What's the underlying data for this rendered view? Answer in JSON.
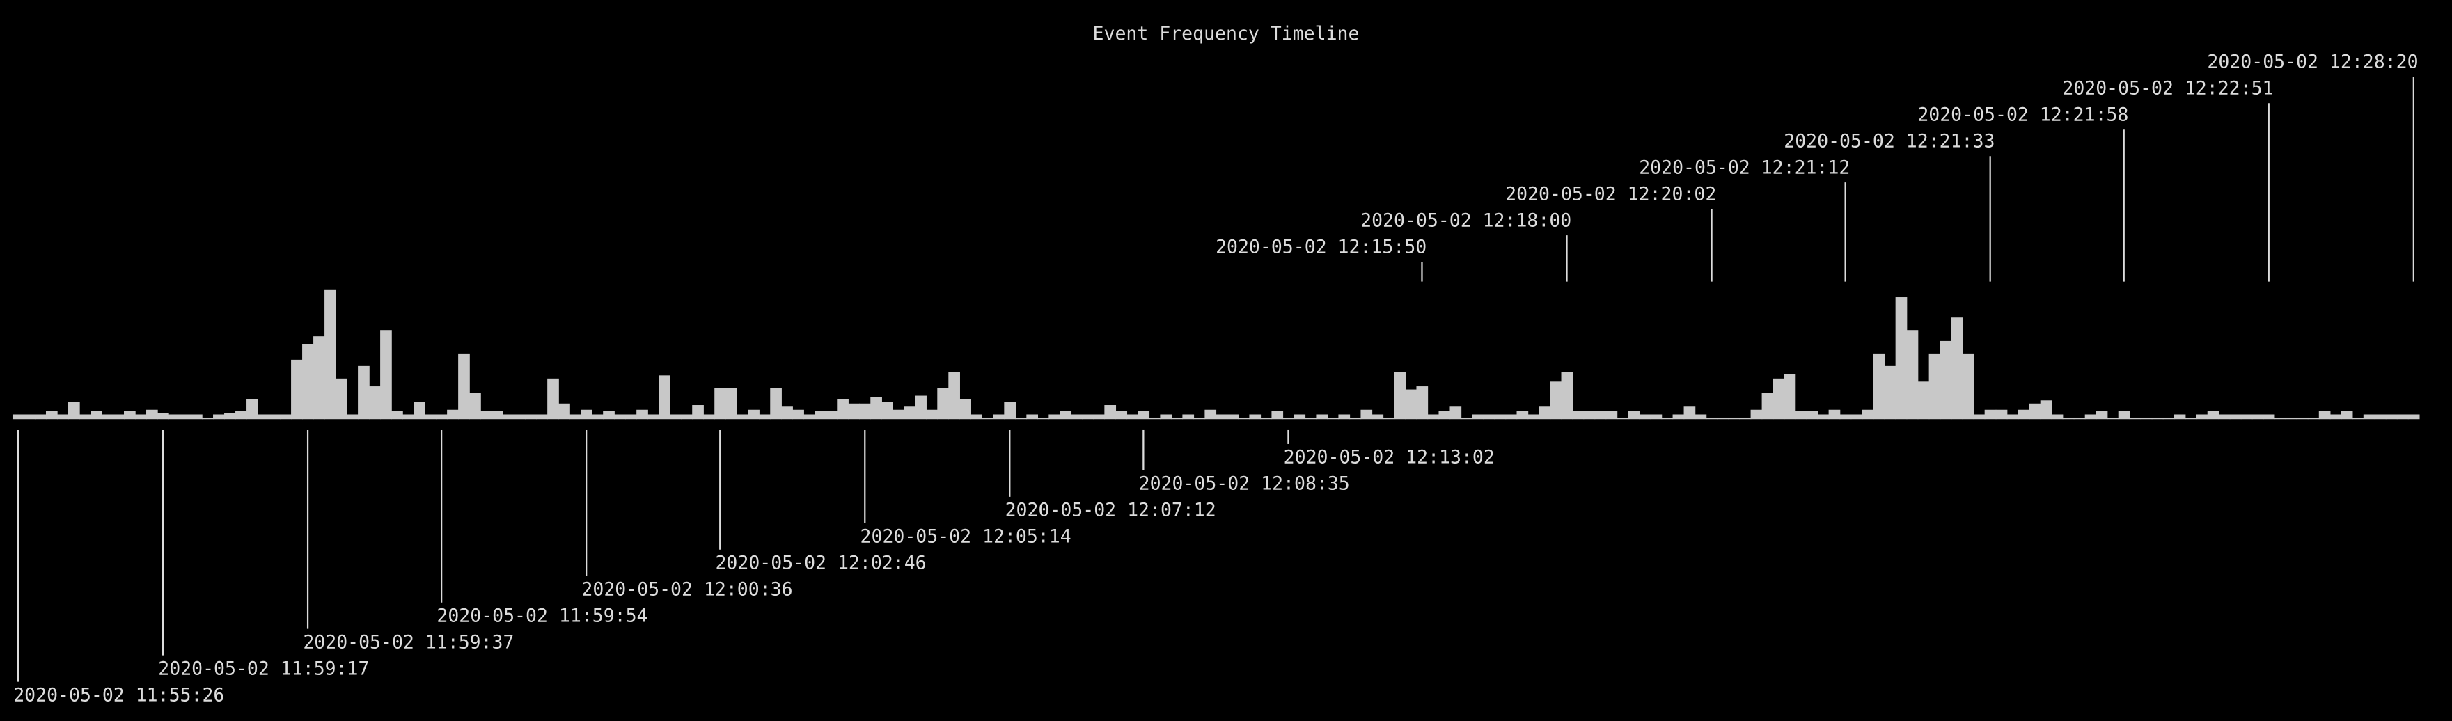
{
  "chart_data": {
    "type": "bar",
    "title": "Event Frequency Timeline",
    "color": "#c8c8c8",
    "values": [
      3,
      3,
      3,
      5,
      3,
      11,
      3,
      5,
      3,
      3,
      5,
      3,
      6,
      4,
      3,
      3,
      3,
      1,
      3,
      4,
      5,
      13,
      3,
      3,
      3,
      38,
      48,
      53,
      83,
      26,
      3,
      34,
      21,
      57,
      5,
      3,
      11,
      3,
      3,
      6,
      42,
      17,
      5,
      5,
      3,
      3,
      3,
      3,
      26,
      10,
      3,
      6,
      3,
      5,
      3,
      3,
      6,
      3,
      28,
      3,
      3,
      9,
      3,
      20,
      20,
      3,
      6,
      3,
      20,
      8,
      6,
      3,
      5,
      5,
      13,
      10,
      10,
      14,
      11,
      6,
      8,
      15,
      6,
      20,
      30,
      13,
      3,
      1,
      3,
      11,
      1,
      3,
      1,
      3,
      5,
      3,
      3,
      3,
      9,
      5,
      3,
      5,
      1,
      3,
      1,
      3,
      1,
      6,
      3,
      3,
      1,
      3,
      1,
      5,
      1,
      3,
      1,
      3,
      1,
      3,
      1,
      6,
      3,
      1,
      30,
      19,
      21,
      3,
      5,
      8,
      1,
      3,
      3,
      3,
      3,
      5,
      3,
      8,
      24,
      30,
      5,
      5,
      5,
      5,
      1,
      5,
      3,
      3,
      1,
      3,
      8,
      3,
      1,
      1,
      1,
      1,
      6,
      17,
      26,
      29,
      5,
      5,
      3,
      6,
      3,
      3,
      6,
      42,
      34,
      78,
      57,
      24,
      42,
      50,
      65,
      42,
      3,
      6,
      6,
      3,
      6,
      10,
      12,
      3,
      1,
      1,
      3,
      5,
      1,
      5,
      1,
      1,
      1,
      1,
      3,
      1,
      3,
      5,
      3,
      3,
      3,
      3,
      3,
      1,
      1,
      1,
      1,
      5,
      3,
      5,
      1,
      3,
      3,
      3,
      3,
      3
    ],
    "xticks": [
      {
        "value": 0,
        "label": "2020-05-02 11:55:26"
      },
      {
        "value": 13,
        "label": "2020-05-02 11:59:17"
      },
      {
        "value": 26,
        "label": "2020-05-02 11:59:37"
      },
      {
        "value": 38,
        "label": "2020-05-02 11:59:54"
      },
      {
        "value": 51,
        "label": "2020-05-02 12:00:36"
      },
      {
        "value": 63,
        "label": "2020-05-02 12:02:46"
      },
      {
        "value": 76,
        "label": "2020-05-02 12:05:14"
      },
      {
        "value": 89,
        "label": "2020-05-02 12:07:12"
      },
      {
        "value": 101,
        "label": "2020-05-02 12:08:35"
      },
      {
        "value": 114,
        "label": "2020-05-02 12:13:02"
      },
      {
        "value": 126,
        "label": "2020-05-02 12:15:50"
      },
      {
        "value": 139,
        "label": "2020-05-02 12:18:00"
      },
      {
        "value": 152,
        "label": "2020-05-02 12:20:02"
      },
      {
        "value": 164,
        "label": "2020-05-02 12:21:12"
      },
      {
        "value": 177,
        "label": "2020-05-02 12:21:33"
      },
      {
        "value": 189,
        "label": "2020-05-02 12:21:58"
      },
      {
        "value": 202,
        "label": "2020-05-02 12:22:51"
      },
      {
        "value": 215,
        "label": "2020-05-02 12:28:20"
      }
    ]
  }
}
